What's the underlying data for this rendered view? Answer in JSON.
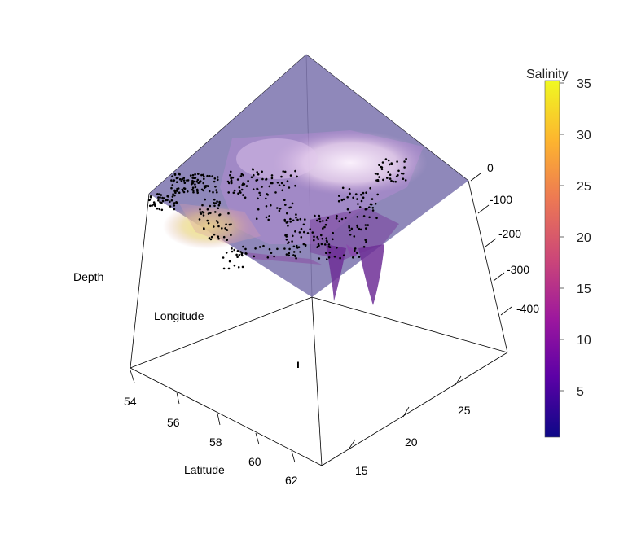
{
  "chart_data": {
    "type": "scatter",
    "subtype": "3d-surface-with-points",
    "xlabel": "Latitude",
    "ylabel": "Longitude",
    "zlabel": "Depth",
    "x_ticks": [
      "54",
      "56",
      "58",
      "60",
      "62"
    ],
    "y_ticks": [
      "15",
      "20",
      "25"
    ],
    "z_ticks": [
      "0",
      "-100",
      "-200",
      "-300",
      "-400"
    ],
    "xlim": [
      54,
      62
    ],
    "ylim": [
      12,
      28
    ],
    "zlim": [
      -450,
      0
    ],
    "colorbar": {
      "title": "Salinity",
      "ticks": [
        "5",
        "10",
        "15",
        "20",
        "25",
        "30",
        "35"
      ],
      "range": [
        0,
        35
      ],
      "palette": [
        "#0d0887",
        "#5c01a6",
        "#9c179e",
        "#cc4778",
        "#ed7953",
        "#fdb42f",
        "#f0f921"
      ]
    },
    "surface_color": "#8e86b8",
    "point_color": "#000000",
    "extra_mark": "ı"
  }
}
